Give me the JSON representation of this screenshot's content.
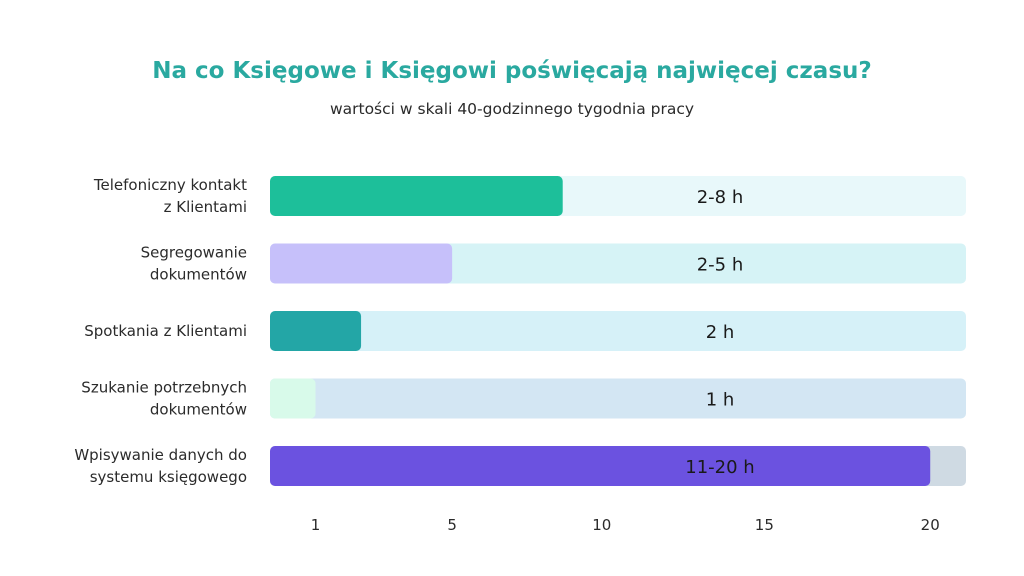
{
  "chart_data": {
    "type": "bar",
    "orientation": "horizontal",
    "title": "Na co Księgowe i Księgowi poświęcają najwięcej czasu?",
    "subtitle": "wartości w skali 40-godzinnego tygodnia pracy",
    "xlim": [
      0,
      21.4
    ],
    "grid": false,
    "categories": [
      [
        "Telefoniczny kontakt",
        "z Klientami"
      ],
      [
        "Segregowanie",
        "dokumentów"
      ],
      [
        "Spotkania z Klientami"
      ],
      [
        "Szukanie potrzebnych",
        "dokumentów"
      ],
      [
        "Wpisywanie danych do",
        "systemu księgowego"
      ]
    ],
    "values": [
      9,
      5.6,
      2.8,
      1.4,
      20.3
    ],
    "value_labels": [
      "2-8 h",
      "2-5 h",
      "2 h",
      "1 h",
      "11-20 h"
    ],
    "bar_colors": [
      "#1dbf9a",
      "#c6c0fa",
      "#23a6a6",
      "#d8faea",
      "#6b52e0"
    ],
    "track_colors": [
      "#e8f8fa",
      "#d6f3f6",
      "#d6f1f8",
      "#d3e6f3",
      "#cfdae3"
    ],
    "x_ticks": [
      {
        "value": 1.4,
        "label": "1"
      },
      {
        "value": 5.6,
        "label": "5"
      },
      {
        "value": 10.2,
        "label": "10"
      },
      {
        "value": 15.2,
        "label": "15"
      },
      {
        "value": 20.3,
        "label": "20"
      }
    ]
  }
}
